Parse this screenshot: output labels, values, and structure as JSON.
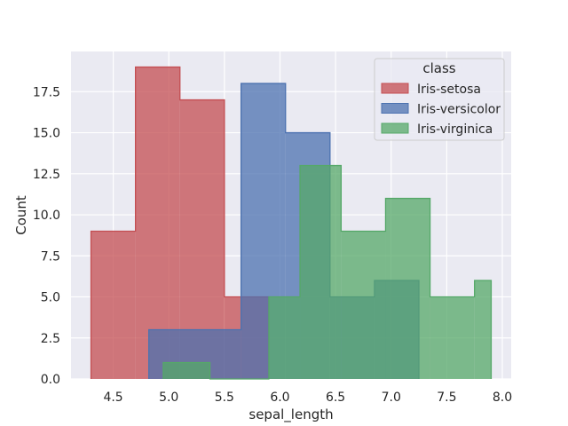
{
  "chart_data": {
    "type": "histogram",
    "xlabel": "sepal_length",
    "ylabel": "Count",
    "xlim": [
      4.12,
      8.08
    ],
    "ylim": [
      0,
      19.95
    ],
    "x_ticks": [
      "4.5",
      "5.0",
      "5.5",
      "6.0",
      "6.5",
      "7.0",
      "7.5",
      "8.0"
    ],
    "y_ticks": [
      "0.0",
      "2.5",
      "5.0",
      "7.5",
      "10.0",
      "12.5",
      "15.0",
      "17.5"
    ],
    "bin_edges": [
      4.3,
      4.7,
      5.1,
      5.5,
      5.9,
      6.3,
      6.7,
      7.1,
      7.5,
      7.9
    ],
    "grid": true,
    "legend_position": "top-right",
    "legend_title": "class",
    "series": [
      {
        "name": "Iris-setosa",
        "color": "#c44e52",
        "bins": [
          {
            "x0": 4.3,
            "x1": 4.7,
            "count": 9
          },
          {
            "x0": 4.7,
            "x1": 5.1,
            "count": 19
          },
          {
            "x0": 5.1,
            "x1": 5.5,
            "count": 17
          },
          {
            "x0": 5.5,
            "x1": 5.9,
            "count": 5
          }
        ]
      },
      {
        "name": "Iris-versicolor",
        "color": "#4c72b0",
        "bins": [
          {
            "x0": 4.82,
            "x1": 5.65,
            "count": 3
          },
          {
            "x0": 5.65,
            "x1": 6.05,
            "count": 18
          },
          {
            "x0": 6.05,
            "x1": 6.45,
            "count": 15
          },
          {
            "x0": 6.45,
            "x1": 6.85,
            "count": 5
          },
          {
            "x0": 6.85,
            "x1": 7.25,
            "count": 6
          }
        ]
      },
      {
        "name": "Iris-virginica",
        "color": "#55a868",
        "bins": [
          {
            "x0": 4.95,
            "x1": 5.37,
            "count": 1
          },
          {
            "x0": 5.37,
            "x1": 5.9,
            "count": 0
          },
          {
            "x0": 5.9,
            "x1": 6.18,
            "count": 5
          },
          {
            "x0": 6.18,
            "x1": 6.55,
            "count": 13
          },
          {
            "x0": 6.55,
            "x1": 6.95,
            "count": 9
          },
          {
            "x0": 6.95,
            "x1": 7.35,
            "count": 11
          },
          {
            "x0": 7.35,
            "x1": 7.75,
            "count": 5
          },
          {
            "x0": 7.75,
            "x1": 7.9,
            "count": 6
          }
        ]
      }
    ]
  }
}
